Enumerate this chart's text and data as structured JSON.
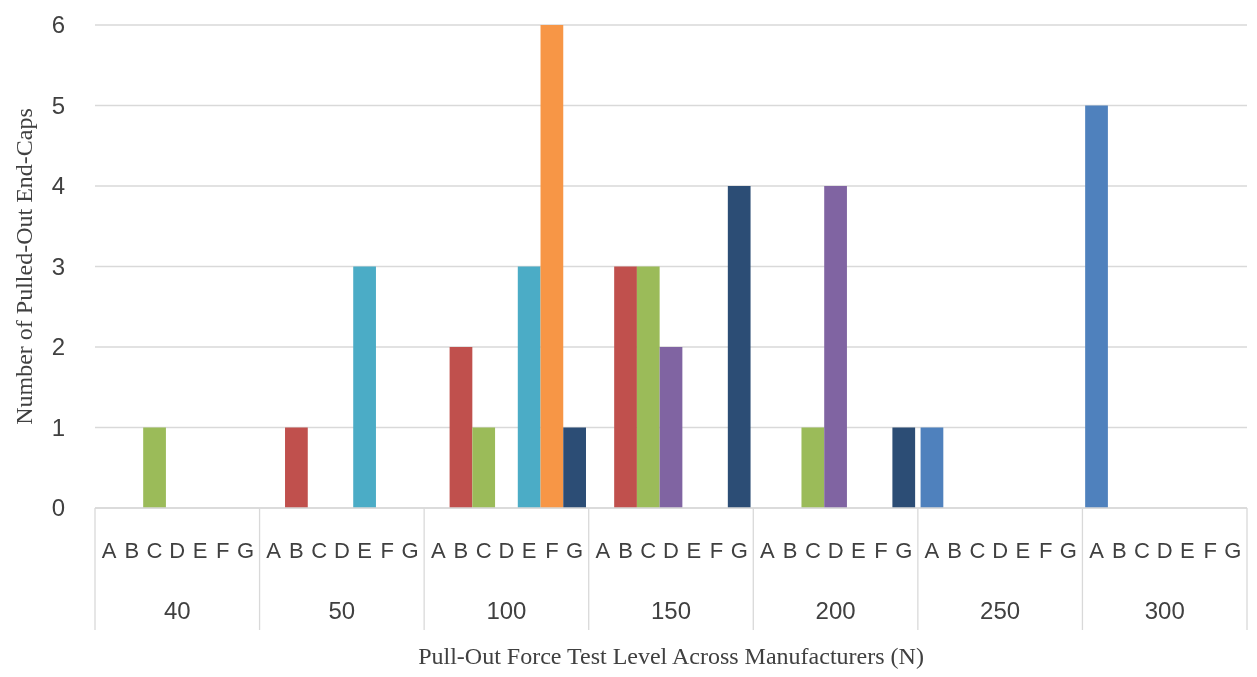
{
  "chart_data": {
    "type": "bar",
    "xlabel": "Pull-Out Force Test Level Across Manufacturers (N)",
    "ylabel": "Number of Pulled-Out End-Caps",
    "categories": [
      "40",
      "50",
      "100",
      "150",
      "200",
      "250",
      "300"
    ],
    "series": [
      {
        "name": "A",
        "color": "#4f81bd",
        "values": [
          0,
          0,
          0,
          0,
          0,
          1,
          5
        ]
      },
      {
        "name": "B",
        "color": "#c0504d",
        "values": [
          0,
          1,
          2,
          3,
          0,
          0,
          0
        ]
      },
      {
        "name": "C",
        "color": "#9bbb59",
        "values": [
          1,
          0,
          1,
          3,
          1,
          0,
          0
        ]
      },
      {
        "name": "D",
        "color": "#8064a2",
        "values": [
          0,
          0,
          0,
          2,
          4,
          0,
          0
        ]
      },
      {
        "name": "E",
        "color": "#4bacc6",
        "values": [
          0,
          3,
          3,
          0,
          0,
          0,
          0
        ]
      },
      {
        "name": "F",
        "color": "#f79646",
        "values": [
          0,
          0,
          6,
          0,
          0,
          0,
          0
        ]
      },
      {
        "name": "G",
        "color": "#2c4d75",
        "values": [
          0,
          0,
          1,
          4,
          1,
          0,
          0
        ]
      }
    ],
    "ylim": [
      0,
      6
    ],
    "yticks": [
      0,
      1,
      2,
      3,
      4,
      5,
      6
    ],
    "grid": "y"
  }
}
